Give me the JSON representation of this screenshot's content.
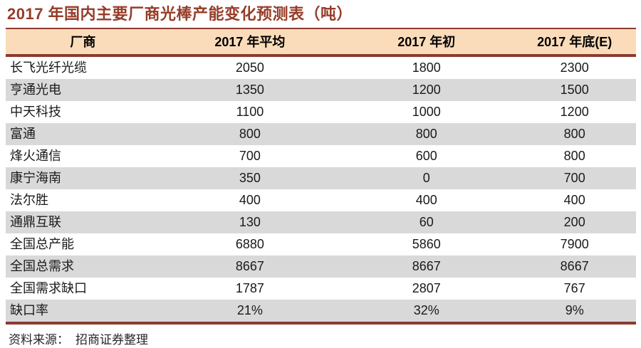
{
  "title": "2017 年国内主要厂商光棒产能变化预测表（吨）",
  "chart_data": {
    "type": "table",
    "title": "2017 年国内主要厂商光棒产能变化预测表（吨）",
    "unit_note": "吨",
    "columns": [
      "厂商",
      "2017 年平均",
      "2017 年初",
      "2017 年底(E)"
    ],
    "rows": [
      [
        "长飞光纤光缆",
        "2050",
        "1800",
        "2300"
      ],
      [
        "亨通光电",
        "1350",
        "1200",
        "1500"
      ],
      [
        "中天科技",
        "1100",
        "1000",
        "1200"
      ],
      [
        "富通",
        "800",
        "800",
        "800"
      ],
      [
        "烽火通信",
        "700",
        "600",
        "800"
      ],
      [
        "康宁海南",
        "350",
        "0",
        "700"
      ],
      [
        "法尔胜",
        "400",
        "400",
        "400"
      ],
      [
        "通鼎互联",
        "130",
        "60",
        "200"
      ],
      [
        "全国总产能",
        "6880",
        "5860",
        "7900"
      ],
      [
        "全国总需求",
        "8667",
        "8667",
        "8667"
      ],
      [
        "全国需求缺口",
        "1787",
        "2807",
        "767"
      ],
      [
        "缺口率",
        "21%",
        "32%",
        "9%"
      ]
    ]
  },
  "footer": {
    "label": "资料来源：",
    "source": "招商证券整理"
  },
  "colors": {
    "accent": "#963C28",
    "rule": "#8C3A32",
    "header_bg": "#FBDCBA",
    "stripe": "#D9D9D9",
    "text": "#1A1A1A"
  }
}
